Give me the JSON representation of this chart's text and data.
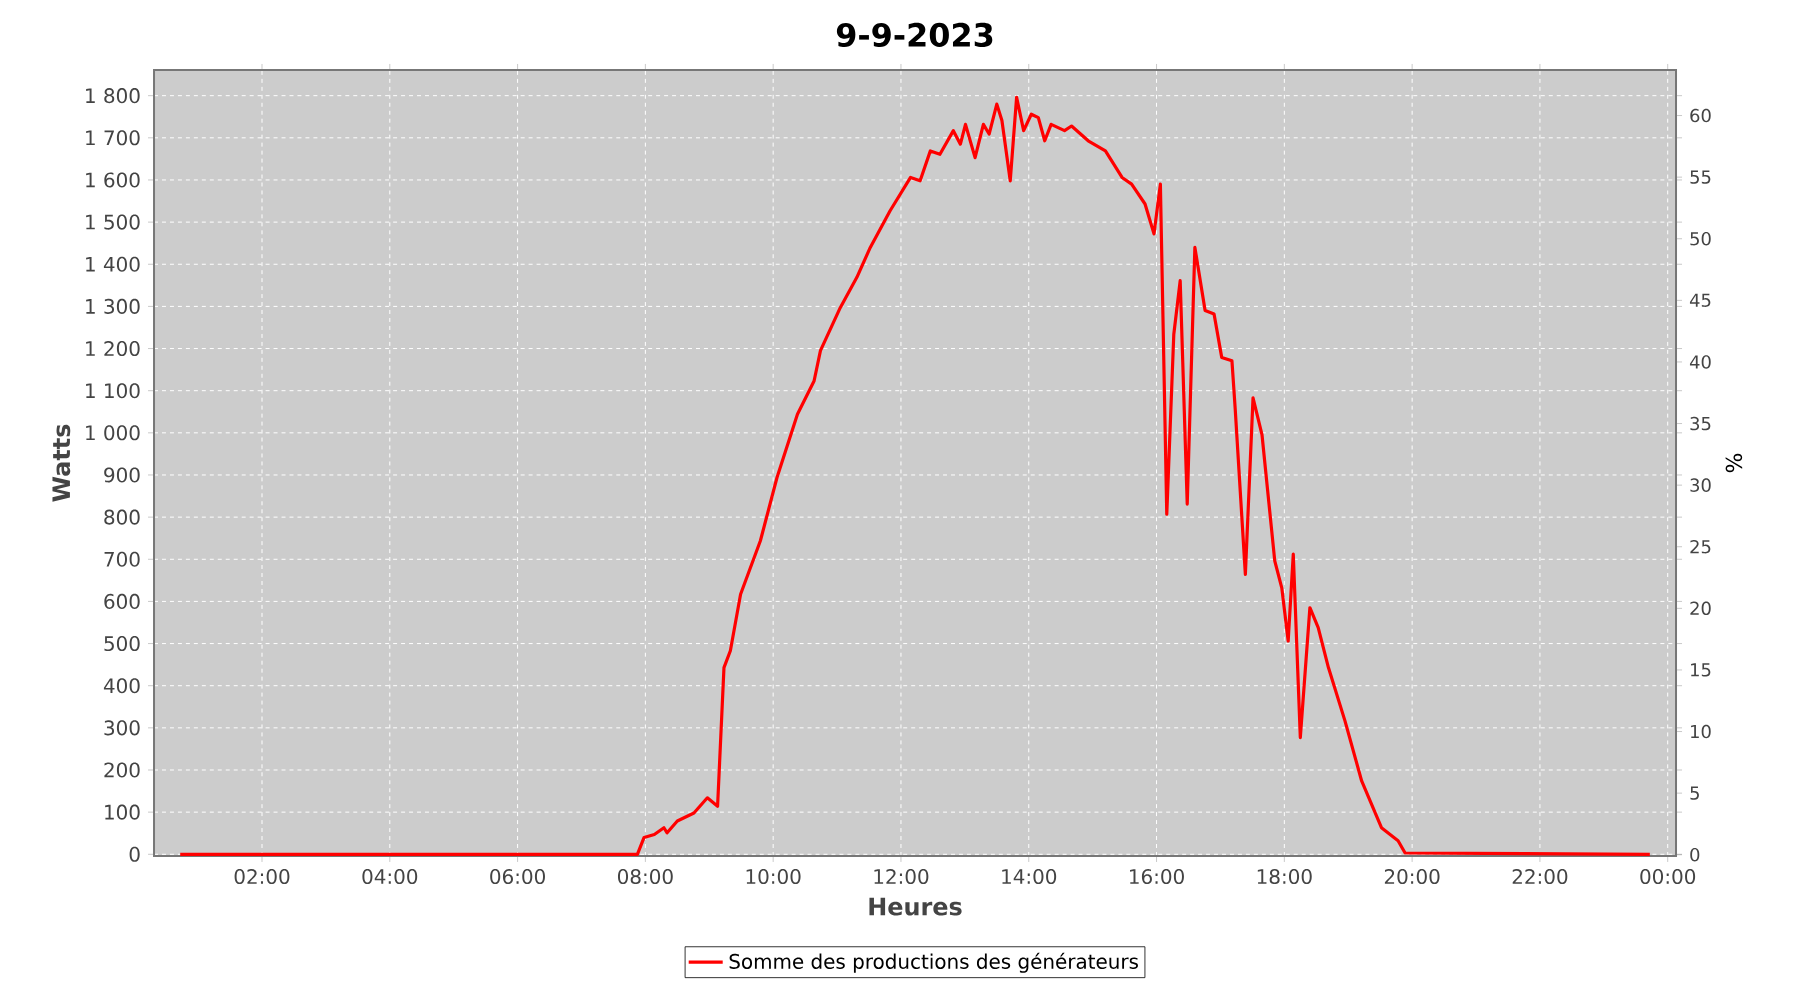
{
  "chart_data": {
    "type": "line",
    "title": "9-9-2023",
    "xlabel": "Heures",
    "ylabel": "Watts",
    "y2label": "%",
    "x": [
      0.72,
      7.875,
      7.98,
      8.14,
      8.29,
      8.34,
      8.5,
      8.76,
      8.97,
      9.13,
      9.23,
      9.33,
      9.49,
      9.8,
      10.06,
      10.38,
      10.64,
      10.74,
      11.05,
      11.31,
      11.52,
      11.83,
      12.15,
      12.3,
      12.46,
      12.61,
      12.82,
      12.93,
      13.01,
      13.16,
      13.29,
      13.38,
      13.5,
      13.58,
      13.71,
      13.81,
      13.92,
      14.04,
      14.15,
      14.25,
      14.35,
      14.56,
      14.67,
      14.93,
      15.2,
      15.46,
      15.61,
      15.82,
      15.96,
      16.06,
      16.16,
      16.27,
      16.37,
      16.48,
      16.6,
      16.76,
      16.9,
      17.02,
      17.18,
      17.23,
      17.39,
      17.51,
      17.65,
      17.85,
      17.96,
      18.06,
      18.14,
      18.25,
      18.4,
      18.53,
      18.69,
      18.95,
      19.21,
      19.52,
      19.78,
      19.89,
      23.72
    ],
    "series": [
      {
        "name": "Somme des productions des  générateurs",
        "color": "#ff0000",
        "values": [
          0,
          0,
          40,
          47,
          63,
          51,
          79,
          98,
          134,
          114,
          443,
          483,
          617,
          744,
          894,
          1044,
          1123,
          1195,
          1297,
          1369,
          1440,
          1527,
          1606,
          1598,
          1669,
          1661,
          1717,
          1685,
          1732,
          1653,
          1732,
          1709,
          1780,
          1741,
          1598,
          1796,
          1717,
          1756,
          1748,
          1693,
          1732,
          1717,
          1728,
          1693,
          1669,
          1606,
          1590,
          1543,
          1472,
          1590,
          807,
          1234,
          1361,
          831,
          1440,
          1290,
          1282,
          1179,
          1171,
          1059,
          664,
          1083,
          996,
          696,
          632,
          506,
          712,
          277,
          585,
          538,
          443,
          316,
          174,
          63,
          32,
          3,
          0
        ]
      }
    ],
    "xlim": [
      0.31,
      24.13
    ],
    "xticks": [
      {
        "value": 2,
        "label": "02:00"
      },
      {
        "value": 4,
        "label": "04:00"
      },
      {
        "value": 6,
        "label": "06:00"
      },
      {
        "value": 8,
        "label": "08:00"
      },
      {
        "value": 10,
        "label": "10:00"
      },
      {
        "value": 12,
        "label": "12:00"
      },
      {
        "value": 14,
        "label": "14:00"
      },
      {
        "value": 16,
        "label": "16:00"
      },
      {
        "value": 18,
        "label": "18:00"
      },
      {
        "value": 20,
        "label": "20:00"
      },
      {
        "value": 22,
        "label": "22:00"
      },
      {
        "value": 24,
        "label": "00:00"
      }
    ],
    "ylim": [
      -4,
      1861
    ],
    "yticks": [
      0,
      100,
      200,
      300,
      400,
      500,
      600,
      700,
      800,
      900,
      {
        "value": 1000,
        "label": "1 000"
      },
      {
        "value": 1100,
        "label": "1 100"
      },
      {
        "value": 1200,
        "label": "1 200"
      },
      {
        "value": 1300,
        "label": "1 300"
      },
      {
        "value": 1400,
        "label": "1 400"
      },
      {
        "value": 1500,
        "label": "1 500"
      },
      {
        "value": 1600,
        "label": "1 600"
      },
      {
        "value": 1700,
        "label": "1 700"
      },
      {
        "value": 1800,
        "label": "1 800"
      }
    ],
    "y2lim": [
      -0.1,
      63.7
    ],
    "y2ticks": [
      0,
      5,
      10,
      15,
      20,
      25,
      30,
      35,
      40,
      45,
      50,
      55,
      60
    ],
    "grid": true,
    "legend": "bottom",
    "line_style": "solid"
  }
}
